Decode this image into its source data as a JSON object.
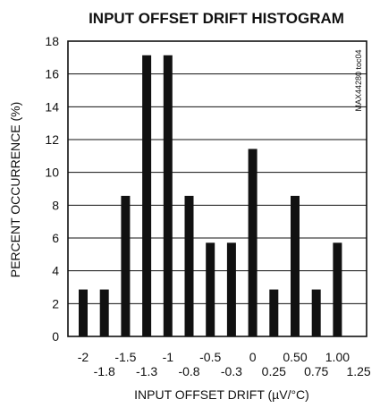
{
  "chart_data": {
    "type": "bar",
    "title": "INPUT OFFSET DRIFT HISTOGRAM",
    "xlabel": "INPUT OFFSET DRIFT (µV/°C)",
    "ylabel": "PERCENT OCCURRENCE (%)",
    "side_label": "MAX44280 toc04",
    "ylim": [
      0,
      18
    ],
    "yticks": [
      0,
      2,
      4,
      6,
      8,
      10,
      12,
      14,
      16,
      18
    ],
    "grid": true,
    "legend": "none",
    "bar_color": "#111111",
    "categories": [
      "-2",
      "-1.8",
      "-1.5",
      "-1.3",
      "-1",
      "-0.8",
      "-0.5",
      "-0.3",
      "0",
      "0.25",
      "0.50",
      "0.75",
      "1.00",
      "1.25"
    ],
    "values": [
      2.86,
      2.86,
      8.57,
      17.14,
      17.14,
      8.57,
      5.71,
      5.71,
      11.43,
      2.86,
      8.57,
      2.86,
      5.71,
      0
    ],
    "tick_rows": [
      "upper",
      "lower",
      "upper",
      "lower",
      "upper",
      "lower",
      "upper",
      "lower",
      "upper",
      "lower",
      "upper",
      "lower",
      "upper",
      "lower"
    ]
  }
}
